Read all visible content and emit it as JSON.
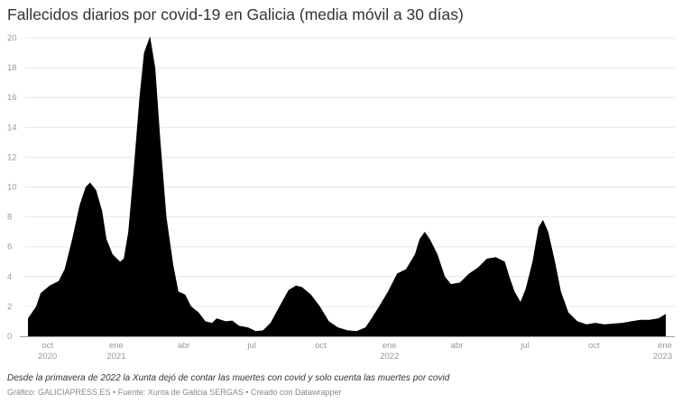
{
  "chart_data": {
    "type": "area",
    "title": "Fallecidos diarios por covid-19 en Galicia (media móvil a 30 días)",
    "xlabel": "",
    "ylabel": "",
    "ylim": [
      0,
      20
    ],
    "yticks": [
      0,
      2,
      4,
      6,
      8,
      10,
      12,
      14,
      16,
      18,
      20
    ],
    "xlim": [
      "2020-09-05",
      "2023-01-05"
    ],
    "xticks": [
      {
        "date": "2020-10-01",
        "label": "oct",
        "year": "2020"
      },
      {
        "date": "2021-01-01",
        "label": "ene",
        "year": "2021"
      },
      {
        "date": "2021-04-01",
        "label": "abr",
        "year": ""
      },
      {
        "date": "2021-07-01",
        "label": "jul",
        "year": ""
      },
      {
        "date": "2021-10-01",
        "label": "oct",
        "year": ""
      },
      {
        "date": "2022-01-01",
        "label": "ene",
        "year": "2022"
      },
      {
        "date": "2022-04-01",
        "label": "abr",
        "year": ""
      },
      {
        "date": "2022-07-01",
        "label": "jul",
        "year": ""
      },
      {
        "date": "2022-10-01",
        "label": "oct",
        "year": ""
      },
      {
        "date": "2023-01-01",
        "label": "ene",
        "year": "2023"
      }
    ],
    "grid": true,
    "fill_color": "#000000",
    "points": [
      [
        "2020-09-05",
        1.2
      ],
      [
        "2020-09-16",
        2.0
      ],
      [
        "2020-09-22",
        2.9
      ],
      [
        "2020-10-04",
        3.4
      ],
      [
        "2020-10-16",
        3.7
      ],
      [
        "2020-10-24",
        4.5
      ],
      [
        "2020-11-03",
        6.5
      ],
      [
        "2020-11-13",
        8.8
      ],
      [
        "2020-11-21",
        10.0
      ],
      [
        "2020-11-27",
        10.3
      ],
      [
        "2020-12-05",
        9.8
      ],
      [
        "2020-12-13",
        8.4
      ],
      [
        "2020-12-19",
        6.5
      ],
      [
        "2020-12-27",
        5.5
      ],
      [
        "2021-01-06",
        5.0
      ],
      [
        "2021-01-11",
        5.2
      ],
      [
        "2021-01-17",
        7.0
      ],
      [
        "2021-01-24",
        11.0
      ],
      [
        "2021-02-01",
        16.0
      ],
      [
        "2021-02-07",
        19.0
      ],
      [
        "2021-02-15",
        20.1
      ],
      [
        "2021-02-22",
        18.0
      ],
      [
        "2021-03-01",
        13.0
      ],
      [
        "2021-03-09",
        8.0
      ],
      [
        "2021-03-18",
        4.8
      ],
      [
        "2021-03-25",
        3.0
      ],
      [
        "2021-04-03",
        2.8
      ],
      [
        "2021-04-11",
        2.0
      ],
      [
        "2021-04-21",
        1.6
      ],
      [
        "2021-04-30",
        1.0
      ],
      [
        "2021-05-09",
        0.9
      ],
      [
        "2021-05-15",
        1.2
      ],
      [
        "2021-05-27",
        1.0
      ],
      [
        "2021-06-05",
        1.05
      ],
      [
        "2021-06-14",
        0.7
      ],
      [
        "2021-06-26",
        0.6
      ],
      [
        "2021-07-06",
        0.35
      ],
      [
        "2021-07-16",
        0.4
      ],
      [
        "2021-07-26",
        0.9
      ],
      [
        "2021-08-07",
        2.0
      ],
      [
        "2021-08-19",
        3.1
      ],
      [
        "2021-08-29",
        3.4
      ],
      [
        "2021-09-06",
        3.3
      ],
      [
        "2021-09-18",
        2.8
      ],
      [
        "2021-09-30",
        2.0
      ],
      [
        "2021-10-12",
        1.0
      ],
      [
        "2021-10-24",
        0.6
      ],
      [
        "2021-11-06",
        0.4
      ],
      [
        "2021-11-18",
        0.35
      ],
      [
        "2021-11-30",
        0.6
      ],
      [
        "2021-12-08",
        1.2
      ],
      [
        "2021-12-18",
        2.0
      ],
      [
        "2021-12-30",
        3.0
      ],
      [
        "2022-01-11",
        4.2
      ],
      [
        "2022-01-23",
        4.5
      ],
      [
        "2022-02-04",
        5.5
      ],
      [
        "2022-02-10",
        6.5
      ],
      [
        "2022-02-17",
        7.0
      ],
      [
        "2022-02-24",
        6.5
      ],
      [
        "2022-03-06",
        5.5
      ],
      [
        "2022-03-16",
        4.0
      ],
      [
        "2022-03-24",
        3.5
      ],
      [
        "2022-04-05",
        3.6
      ],
      [
        "2022-04-17",
        4.2
      ],
      [
        "2022-04-29",
        4.6
      ],
      [
        "2022-05-11",
        5.2
      ],
      [
        "2022-05-23",
        5.3
      ],
      [
        "2022-06-04",
        5.0
      ],
      [
        "2022-06-10",
        4.0
      ],
      [
        "2022-06-17",
        3.0
      ],
      [
        "2022-06-25",
        2.3
      ],
      [
        "2022-07-02",
        3.2
      ],
      [
        "2022-07-11",
        5.0
      ],
      [
        "2022-07-19",
        7.3
      ],
      [
        "2022-07-25",
        7.8
      ],
      [
        "2022-08-01",
        7.0
      ],
      [
        "2022-08-10",
        5.0
      ],
      [
        "2022-08-18",
        3.0
      ],
      [
        "2022-08-28",
        1.6
      ],
      [
        "2022-09-09",
        1.0
      ],
      [
        "2022-09-21",
        0.8
      ],
      [
        "2022-10-03",
        0.9
      ],
      [
        "2022-10-15",
        0.8
      ],
      [
        "2022-10-27",
        0.85
      ],
      [
        "2022-11-08",
        0.9
      ],
      [
        "2022-11-20",
        1.0
      ],
      [
        "2022-12-02",
        1.1
      ],
      [
        "2022-12-14",
        1.1
      ],
      [
        "2022-12-26",
        1.2
      ],
      [
        "2023-01-05",
        1.5
      ]
    ],
    "note": "Desde la primavera de 2022 la Xunta dejó de contar las muertes con covid y solo cuenta las muertes por covid",
    "source": "Gráfico: GALICIAPRESS.ES • Fuente: Xunta de Galicia SERGAS • Creado con Datawrapper"
  }
}
